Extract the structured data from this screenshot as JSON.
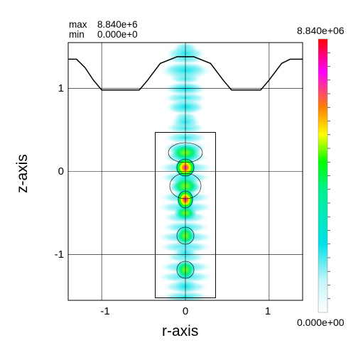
{
  "stats": {
    "max_label": "max",
    "max_value": "8.840e+6",
    "min_label": "min",
    "min_value": "0.000e+0"
  },
  "colorbar": {
    "max_label": "8.840e+06",
    "min_label": "0.000e+00",
    "colors": [
      "#ffffff",
      "#00e0e8",
      "#00f080",
      "#00ff00",
      "#ffff00",
      "#ff8000",
      "#ff00ff",
      "#ff0000"
    ]
  },
  "chart_data": {
    "type": "heatmap",
    "xlabel": "r-axis",
    "ylabel": "z-axis",
    "xlim": [
      -1.4,
      1.4
    ],
    "ylim": [
      -1.55,
      1.55
    ],
    "x_ticks": [
      -1,
      0,
      1
    ],
    "y_ticks": [
      1,
      0,
      -1
    ],
    "x_tick_labels": [
      "-1",
      "0",
      "1"
    ],
    "y_tick_labels": [
      "1",
      "0",
      "-1"
    ],
    "value_range": [
      0,
      8840000
    ],
    "grid": true,
    "boundary_profile": [
      [
        -1.4,
        1.35
      ],
      [
        -1.3,
        1.35
      ],
      [
        -1.2,
        1.25
      ],
      [
        -1.1,
        1.1
      ],
      [
        -1.0,
        0.98
      ],
      [
        -0.55,
        0.98
      ],
      [
        -0.45,
        1.1
      ],
      [
        -0.3,
        1.3
      ],
      [
        -0.1,
        1.38
      ],
      [
        0.0,
        1.38
      ],
      [
        0.1,
        1.38
      ],
      [
        0.3,
        1.3
      ],
      [
        0.45,
        1.1
      ],
      [
        0.55,
        0.98
      ],
      [
        0.9,
        0.98
      ],
      [
        1.0,
        1.1
      ],
      [
        1.15,
        1.3
      ],
      [
        1.25,
        1.35
      ],
      [
        1.4,
        1.35
      ]
    ],
    "inner_box": {
      "r_min": -0.36,
      "r_max": 0.36,
      "z_min": -1.52,
      "z_max": 0.47
    }
  }
}
